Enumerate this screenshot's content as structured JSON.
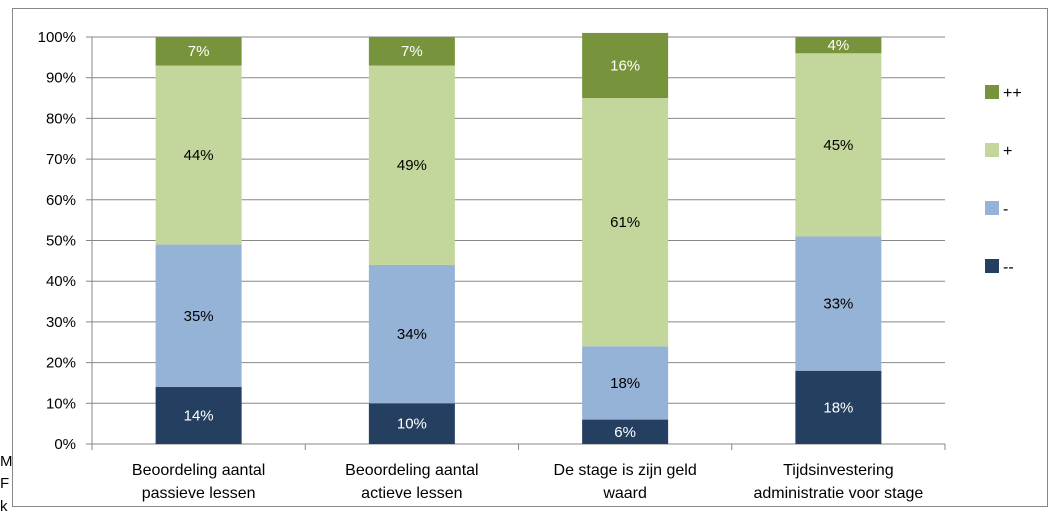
{
  "chart_data": {
    "type": "bar",
    "stacked": true,
    "percent": true,
    "categories": [
      [
        "Beoordeling aantal",
        "passieve lessen"
      ],
      [
        "Beoordeling aantal",
        "actieve lessen"
      ],
      [
        "De stage  is zijn geld",
        "waard"
      ],
      [
        "Tijdsinvestering",
        "administratie voor stage"
      ]
    ],
    "series": [
      {
        "name": "--",
        "color": "#243f60",
        "label_color": "#ffffff",
        "values": [
          14,
          10,
          6,
          18
        ]
      },
      {
        "name": "-",
        "color": "#95b3d7",
        "label_color": "#000000",
        "values": [
          35,
          34,
          18,
          33
        ]
      },
      {
        "name": "+",
        "color": "#c3d69b",
        "label_color": "#000000",
        "values": [
          44,
          49,
          61,
          45
        ]
      },
      {
        "name": "++",
        "color": "#77933c",
        "label_color": "#ffffff",
        "values": [
          7,
          7,
          16,
          4
        ]
      }
    ],
    "data_labels": [
      [
        "14%",
        "35%",
        "44%",
        "7%"
      ],
      [
        "10%",
        "34%",
        "49%",
        "7%"
      ],
      [
        "6%",
        "18%",
        "61%",
        "16%"
      ],
      [
        "18%",
        "33%",
        "45%",
        "4%"
      ]
    ],
    "ylim": [
      0,
      100
    ],
    "yticks": [
      "0%",
      "10%",
      "20%",
      "30%",
      "40%",
      "50%",
      "60%",
      "70%",
      "80%",
      "90%",
      "100%"
    ],
    "legend": [
      "++",
      "+",
      "-",
      "--"
    ],
    "legend_position": "right",
    "grid": true
  },
  "page_fragments": [
    "M",
    "F",
    "k"
  ]
}
